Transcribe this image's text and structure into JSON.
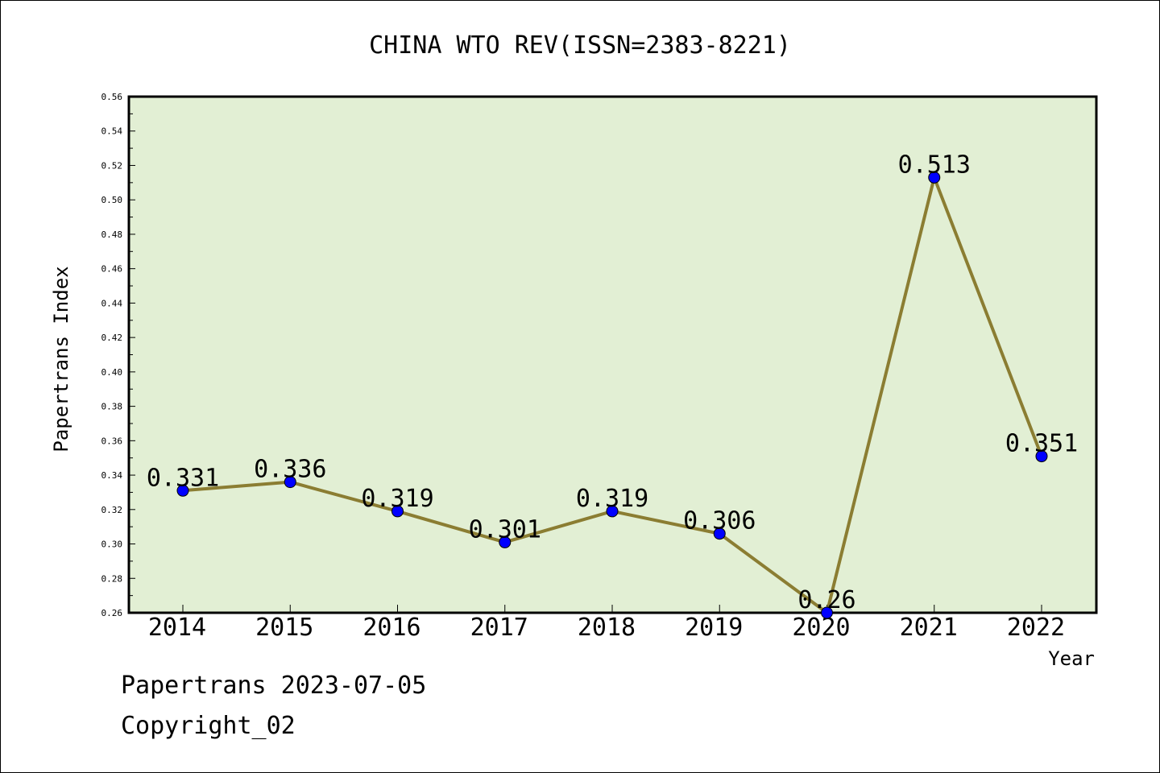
{
  "chart_data": {
    "type": "line",
    "title": "CHINA WTO REV(ISSN=2383-8221)",
    "xlabel": "Year",
    "ylabel": "Papertrans Index",
    "categories": [
      "2014",
      "2015",
      "2016",
      "2017",
      "2018",
      "2019",
      "2020",
      "2021",
      "2022"
    ],
    "values": [
      0.331,
      0.336,
      0.319,
      0.301,
      0.319,
      0.306,
      0.26,
      0.513,
      0.351
    ],
    "data_labels": [
      "0.331",
      "0.336",
      "0.319",
      "0.301",
      "0.319",
      "0.306",
      "0.26",
      "0.513",
      "0.351"
    ],
    "ylim": [
      0.26,
      0.56
    ],
    "yticks": [
      "0.26",
      "0.28",
      "0.30",
      "0.32",
      "0.34",
      "0.36",
      "0.38",
      "0.40",
      "0.42",
      "0.44",
      "0.46",
      "0.48",
      "0.50",
      "0.52",
      "0.54",
      "0.56"
    ],
    "grid": false,
    "colors": {
      "plot_background": "#e2efd4",
      "line": "#8b7d32",
      "marker": "#0000ff"
    }
  },
  "footer": {
    "line1": "Papertrans 2023-07-05",
    "line2": "Copyright_02"
  }
}
